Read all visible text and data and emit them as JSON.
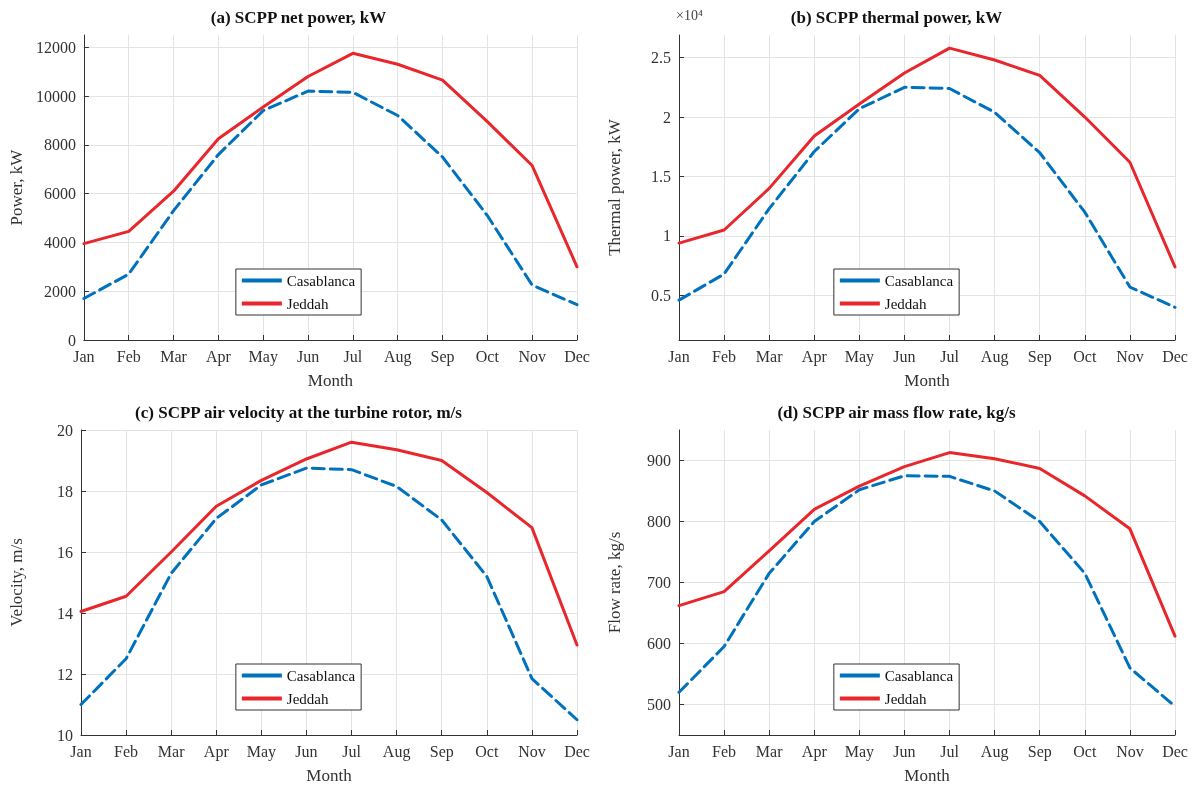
{
  "chart_data": [
    {
      "type": "line",
      "title": "(a) SCPP net power, kW",
      "xlabel": "Month",
      "ylabel": "Power, kW",
      "categories": [
        "Jan",
        "Feb",
        "Mar",
        "Apr",
        "May",
        "Jun",
        "Jul",
        "Aug",
        "Sep",
        "Oct",
        "Nov",
        "Dec"
      ],
      "ylim": [
        0,
        12500
      ],
      "yticks": [
        0,
        2000,
        4000,
        6000,
        8000,
        10000,
        12000
      ],
      "grid": true,
      "legend": "bottom",
      "marker": "none",
      "series": [
        {
          "name": "Casablanca",
          "color": "#0072bd",
          "line_style": "dashed",
          "values": [
            1700,
            2700,
            5300,
            7600,
            9400,
            10200,
            10150,
            9200,
            7500,
            5100,
            2250,
            1450
          ]
        },
        {
          "name": "Jeddah",
          "color": "#e8262b",
          "line_style": "solid",
          "values": [
            3950,
            4450,
            6100,
            8250,
            9550,
            10800,
            11750,
            11300,
            10650,
            8950,
            7150,
            3000
          ]
        }
      ]
    },
    {
      "type": "line",
      "title": "(b) SCPP thermal power, kW",
      "xlabel": "Month",
      "ylabel": "Thermal power, kW",
      "annotations": [
        "×10⁴"
      ],
      "categories": [
        "Jan",
        "Feb",
        "Mar",
        "Apr",
        "May",
        "Jun",
        "Jul",
        "Aug",
        "Sep",
        "Oct",
        "Nov",
        "Dec"
      ],
      "ylim": [
        0.125,
        2.69
      ],
      "yticks": [
        0.5,
        1,
        1.5,
        2,
        2.5
      ],
      "grid": true,
      "legend": "bottom",
      "marker": "none",
      "series": [
        {
          "name": "Casablanca",
          "color": "#0072bd",
          "line_style": "dashed",
          "values": [
            0.46,
            0.68,
            1.23,
            1.71,
            2.07,
            2.25,
            2.24,
            2.04,
            1.7,
            1.2,
            0.57,
            0.4
          ]
        },
        {
          "name": "Jeddah",
          "color": "#e8262b",
          "line_style": "solid",
          "values": [
            0.94,
            1.05,
            1.4,
            1.84,
            2.11,
            2.37,
            2.58,
            2.48,
            2.35,
            2.0,
            1.62,
            0.74
          ]
        }
      ]
    },
    {
      "type": "line",
      "title": "(c) SCPP air velocity at the turbine rotor, m/s",
      "xlabel": "Month",
      "ylabel": "Velocity, m/s",
      "categories": [
        "Jan",
        "Feb",
        "Mar",
        "Apr",
        "May",
        "Jun",
        "Jul",
        "Aug",
        "Sep",
        "Oct",
        "Nov",
        "Dec"
      ],
      "ylim": [
        10,
        20
      ],
      "yticks": [
        10,
        12,
        14,
        16,
        18,
        20
      ],
      "grid": true,
      "legend": "bottom",
      "marker": "none",
      "series": [
        {
          "name": "Casablanca",
          "color": "#0072bd",
          "line_style": "dashed",
          "values": [
            11.0,
            12.5,
            15.3,
            17.1,
            18.2,
            18.75,
            18.7,
            18.15,
            17.05,
            15.2,
            11.85,
            10.5
          ]
        },
        {
          "name": "Jeddah",
          "color": "#e8262b",
          "line_style": "solid",
          "values": [
            14.05,
            14.55,
            16.0,
            17.5,
            18.35,
            19.05,
            19.6,
            19.35,
            19.0,
            17.95,
            16.8,
            12.95
          ]
        }
      ]
    },
    {
      "type": "line",
      "title": "(d) SCPP air mass flow rate, kg/s",
      "xlabel": "Month",
      "ylabel": "Flow rate, kg/s",
      "categories": [
        "Jan",
        "Feb",
        "Mar",
        "Apr",
        "May",
        "Jun",
        "Jul",
        "Aug",
        "Sep",
        "Oct",
        "Nov",
        "Dec"
      ],
      "ylim": [
        450,
        950
      ],
      "yticks": [
        500,
        600,
        700,
        800,
        900
      ],
      "grid": true,
      "legend": "bottom",
      "marker": "none",
      "series": [
        {
          "name": "Casablanca",
          "color": "#0072bd",
          "line_style": "dashed",
          "values": [
            520,
            595,
            715,
            800,
            852,
            875,
            874,
            850,
            800,
            715,
            560,
            497
          ]
        },
        {
          "name": "Jeddah",
          "color": "#e8262b",
          "line_style": "solid",
          "values": [
            662,
            685,
            752,
            820,
            858,
            890,
            913,
            903,
            887,
            842,
            788,
            612
          ]
        }
      ]
    }
  ]
}
